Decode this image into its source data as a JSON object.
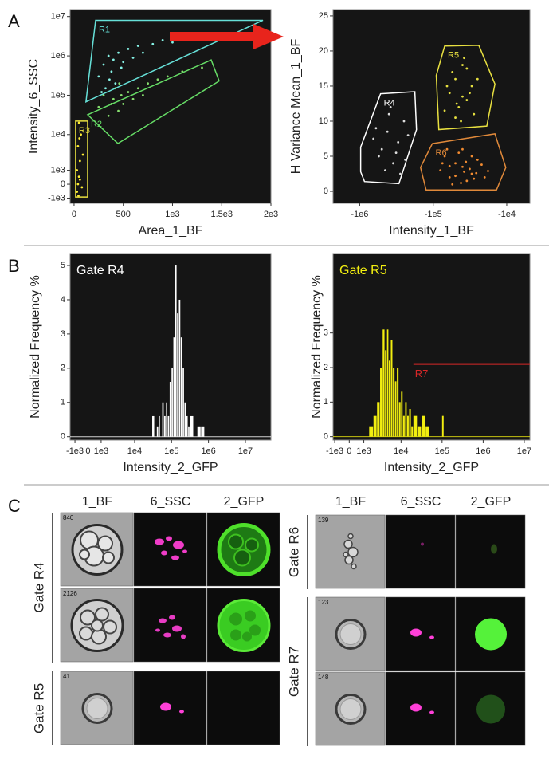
{
  "panel_labels": [
    "A",
    "B",
    "C"
  ],
  "chart_data": [
    {
      "type": "scatter",
      "xlabel": "Area_1_BF",
      "ylabel": "Intensity_6_SSC",
      "xscale": "linear",
      "yscale": "biexponential",
      "xlim": [
        -40,
        2000
      ],
      "ylim": [
        -1500,
        15000000
      ],
      "xticks": [
        0,
        500,
        {
          "value": 1000,
          "label": "1e3"
        },
        {
          "value": 1500,
          "label": "1.5e3"
        },
        {
          "value": 2000,
          "label": "2e3"
        }
      ],
      "yticks": [
        {
          "value": -1000,
          "label": "-1e3"
        },
        0,
        {
          "value": 1000,
          "label": "1e3"
        },
        {
          "value": 10000,
          "label": "1e4"
        },
        {
          "value": 100000,
          "label": "1e5"
        },
        {
          "value": 1000000,
          "label": "1e6"
        },
        {
          "value": 10000000,
          "label": "1e7"
        }
      ],
      "series": [
        {
          "color": "#86f3e6",
          "x": [
            250,
            300,
            320,
            350,
            380,
            400,
            420,
            450,
            480,
            500,
            550,
            600,
            650,
            700,
            800,
            900,
            1000,
            1200,
            1400,
            1600,
            280,
            360
          ],
          "y": [
            300000,
            600000,
            150000,
            1000000,
            400000,
            800000,
            200000,
            1200000,
            500000,
            700000,
            1500000,
            900000,
            1800000,
            1200000,
            2000000,
            2500000,
            2200000,
            3000000,
            2800000,
            3500000,
            120000,
            250000
          ]
        },
        {
          "color": "#86dd6e",
          "x": [
            250,
            300,
            350,
            400,
            420,
            450,
            480,
            500,
            550,
            600,
            650,
            700,
            750,
            850,
            950,
            1100,
            1300,
            380,
            460
          ],
          "y": [
            50000,
            100000,
            30000,
            80000,
            150000,
            40000,
            100000,
            60000,
            120000,
            80000,
            150000,
            100000,
            200000,
            250000,
            300000,
            400000,
            500000,
            60000,
            200000
          ]
        },
        {
          "color": "#ffee33",
          "x": [
            30,
            40,
            50,
            60,
            40,
            70,
            50,
            80,
            60,
            30,
            90,
            45,
            55
          ],
          "y": [
            -500,
            0,
            500,
            2000,
            5000,
            10000,
            20000,
            -200,
            300,
            1000,
            3000,
            -800,
            8000
          ]
        }
      ],
      "gates": [
        {
          "name": "R1",
          "color": "#66e0d8",
          "x": [
            219,
            1919,
            121
          ],
          "y": [
            8000000,
            8000000,
            68000
          ]
        },
        {
          "name": "R2",
          "color": "#66dd66",
          "x": [
            138,
            1393,
            1474,
            445
          ],
          "y": [
            32000,
            790000,
            230000,
            5900
          ]
        },
        {
          "name": "R3",
          "color": "#e8e040",
          "x": [
            16,
            138,
            138,
            16
          ],
          "y": [
            22000,
            22000,
            -900,
            -900
          ]
        }
      ]
    },
    {
      "type": "scatter",
      "xlabel": "Intensity_1_BF",
      "ylabel": "H Variance Mean_1_BF",
      "xscale": "biexponential",
      "yscale": "linear",
      "xlim": [
        -2300000,
        -4800
      ],
      "ylim": [
        -1.7,
        25.9
      ],
      "xticks": [
        {
          "value": -1000000,
          "label": "-1e6"
        },
        {
          "value": -100000,
          "label": "-1e5"
        },
        {
          "value": -10000,
          "label": "-1e4"
        }
      ],
      "yticks": [
        0,
        5,
        10,
        15,
        20,
        25
      ],
      "series": [
        {
          "color": "#dddddd",
          "x": [
            -600000,
            -500000,
            -400000,
            -350000,
            -300000,
            -250000,
            -450000,
            -320000,
            -220000,
            -550000,
            -380000,
            -280000,
            -420000,
            -650000,
            -240000
          ],
          "y": [
            9,
            6,
            11,
            4,
            7,
            10,
            3,
            5.5,
            8,
            5,
            12,
            2.5,
            8.5,
            7.5,
            4.5
          ]
        },
        {
          "color": "#e6e040",
          "x": [
            -60000,
            -50000,
            -40000,
            -35000,
            -30000,
            -45000,
            -55000,
            -38000,
            -28000,
            -42000,
            -65000,
            -32000,
            -50000,
            -25000,
            -40000,
            -35000,
            -70000,
            -48000
          ],
          "y": [
            14,
            16,
            18,
            13,
            15,
            12,
            17,
            19,
            11,
            10,
            15,
            14,
            10.5,
            16,
            13.5,
            17.5,
            11.5,
            12.5
          ]
        },
        {
          "color": "#f08a30",
          "x": [
            -80000,
            -70000,
            -60000,
            -50000,
            -40000,
            -35000,
            -30000,
            -25000,
            -20000,
            -65000,
            -55000,
            -45000,
            -38000,
            -32000,
            -28000,
            -22000,
            -75000,
            -50000,
            -40000,
            -30000,
            -60000,
            -42000,
            -36000,
            -26000,
            -18000
          ],
          "y": [
            3,
            5,
            2,
            4,
            3.5,
            1.5,
            2.5,
            4.5,
            2,
            6,
            1,
            5.5,
            2.8,
            3.2,
            1.8,
            3.8,
            4,
            2.2,
            6,
            5,
            3.6,
            1.2,
            4.2,
            2.6,
            2.9
          ]
        }
      ],
      "gates": [
        {
          "name": "R4",
          "color": "#ffffff",
          "x": [
            -520000,
            -178000,
            -169000,
            -293000,
            -860000,
            -970000,
            -970000
          ],
          "y": [
            13.9,
            14.2,
            8.8,
            1.1,
            1.4,
            2.8,
            6.3
          ]
        },
        {
          "name": "R5",
          "color": "#e8e040",
          "x": [
            -70000,
            -24000,
            -14500,
            -18700,
            -84000,
            -91000
          ],
          "y": [
            20.7,
            20.8,
            15.3,
            9.3,
            8.8,
            16.5
          ]
        },
        {
          "name": "R6",
          "color": "#e0893a",
          "x": [
            -103000,
            -14500,
            -10300,
            -13800,
            -125000,
            -149000
          ],
          "y": [
            6.8,
            8.2,
            3.4,
            0.2,
            0.2,
            3.4
          ]
        }
      ]
    },
    {
      "type": "histogram",
      "xlabel": "Intensity_2_GFP",
      "ylabel": "Normalized Frequency %",
      "annotation": "Gate R4",
      "xscale": "biexponential",
      "yscale": "linear",
      "color": "#ffffff",
      "xlim": [
        -1500,
        49000000
      ],
      "ylim": [
        -0.1,
        5.35
      ],
      "xticks": [
        {
          "value": -1000,
          "label": "-1e3"
        },
        0,
        {
          "value": 1000,
          "label": "1e3"
        },
        {
          "value": 10000,
          "label": "1e4"
        },
        {
          "value": 100000,
          "label": "1e5"
        },
        {
          "value": 1000000,
          "label": "1e6"
        },
        {
          "value": 10000000,
          "label": "1e7"
        }
      ],
      "yticks": [
        0,
        1,
        2,
        3,
        4,
        5
      ],
      "bins": [
        30000,
        35000,
        40000,
        45000,
        50000,
        56000,
        63000,
        71000,
        79000,
        89000,
        100000,
        112000,
        126000,
        141000,
        158000,
        178000,
        200000,
        224000,
        251000,
        282000,
        316000,
        398000,
        501000,
        631000,
        794000
      ],
      "values": [
        0.6,
        0,
        0.3,
        0.6,
        0,
        1,
        0.6,
        1,
        0.6,
        1.6,
        2,
        2.9,
        5,
        3.6,
        4,
        2.9,
        2,
        1,
        0.6,
        0.3,
        0.6,
        0,
        0.3,
        0.3
      ]
    },
    {
      "type": "histogram",
      "xlabel": "Intensity_2_GFP",
      "ylabel": "Normalized Frequency %",
      "annotation": "Gate R5",
      "xscale": "biexponential",
      "yscale": "linear",
      "color": "#f2ee10",
      "xlim": [
        -1140,
        13700000
      ],
      "ylim": [
        -0.1,
        5.3
      ],
      "xticks": [
        {
          "value": -1000,
          "label": "-1e3"
        },
        0,
        {
          "value": 1000,
          "label": "1e3"
        },
        {
          "value": 10000,
          "label": "1e4"
        },
        {
          "value": 100000,
          "label": "1e5"
        },
        {
          "value": 1000000,
          "label": "1e6"
        },
        {
          "value": 10000000,
          "label": "1e7"
        }
      ],
      "yticks": [
        0,
        1,
        2,
        3
      ],
      "bins": [
        1500,
        2000,
        2500,
        3000,
        3500,
        4000,
        4500,
        5000,
        5600,
        6300,
        7100,
        7900,
        8900,
        10000,
        11200,
        12600,
        14100,
        15800,
        17800,
        20000,
        25100,
        31600,
        39800,
        50100,
        63100,
        79400,
        100000,
        112000
      ],
      "values": [
        0.3,
        0.6,
        1,
        2,
        3.1,
        2.5,
        3.1,
        2.2,
        2.8,
        2,
        1.6,
        2,
        1,
        1.3,
        0.6,
        1,
        0.6,
        0.8,
        0.3,
        0.6,
        0.3,
        0.6,
        0.3,
        0,
        0,
        0,
        0.6
      ],
      "threshold": {
        "name": "R7",
        "color": "#d62728",
        "y": 2.1,
        "x": [
          20000,
          13700000
        ]
      }
    }
  ],
  "image_grid": [
    {
      "columns": [
        "1_BF",
        "6_SSC",
        "2_GFP"
      ],
      "groups": [
        {
          "label": "Gate R4",
          "objects": [
            "840",
            "2126"
          ]
        },
        {
          "label": "Gate R5",
          "objects": [
            "41"
          ]
        }
      ]
    },
    {
      "columns": [
        "1_BF",
        "6_SSC",
        "2_GFP"
      ],
      "groups": [
        {
          "label": "Gate R6",
          "objects": [
            "139"
          ]
        },
        {
          "label": "Gate R7",
          "objects": [
            "123",
            "148"
          ]
        }
      ]
    }
  ]
}
